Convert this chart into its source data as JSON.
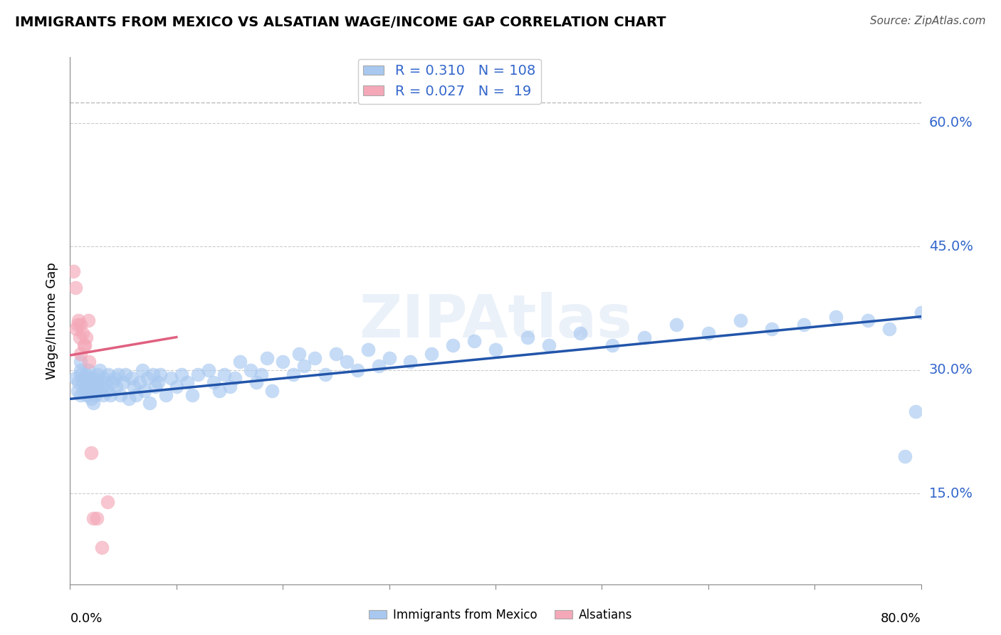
{
  "title": "IMMIGRANTS FROM MEXICO VS ALSATIAN WAGE/INCOME GAP CORRELATION CHART",
  "source": "Source: ZipAtlas.com",
  "ylabel": "Wage/Income Gap",
  "ylabel_ticks": [
    "15.0%",
    "30.0%",
    "45.0%",
    "60.0%"
  ],
  "ylabel_tick_vals": [
    0.15,
    0.3,
    0.45,
    0.6
  ],
  "xlim": [
    0.0,
    0.8
  ],
  "ylim": [
    0.04,
    0.68
  ],
  "blue_R": "0.310",
  "blue_N": "108",
  "pink_R": "0.027",
  "pink_N": "19",
  "blue_color": "#A8C8F0",
  "pink_color": "#F4A8B8",
  "blue_line_color": "#2255AA",
  "pink_line_color": "#E06080",
  "blue_line_x0": 0.0,
  "blue_line_x1": 0.8,
  "blue_line_y0": 0.265,
  "blue_line_y1": 0.365,
  "pink_line_x0": 0.0,
  "pink_line_x1": 0.1,
  "pink_line_y0": 0.318,
  "pink_line_y1": 0.34,
  "dashed_line_y": 0.625,
  "blue_scatter_x": [
    0.005,
    0.007,
    0.008,
    0.01,
    0.01,
    0.01,
    0.01,
    0.012,
    0.013,
    0.014,
    0.015,
    0.015,
    0.016,
    0.017,
    0.017,
    0.018,
    0.018,
    0.019,
    0.02,
    0.02,
    0.021,
    0.022,
    0.022,
    0.023,
    0.024,
    0.025,
    0.026,
    0.027,
    0.028,
    0.03,
    0.031,
    0.032,
    0.033,
    0.035,
    0.036,
    0.038,
    0.04,
    0.042,
    0.043,
    0.045,
    0.047,
    0.05,
    0.052,
    0.055,
    0.058,
    0.06,
    0.062,
    0.065,
    0.068,
    0.07,
    0.073,
    0.075,
    0.078,
    0.08,
    0.083,
    0.085,
    0.09,
    0.095,
    0.1,
    0.105,
    0.11,
    0.115,
    0.12,
    0.13,
    0.135,
    0.14,
    0.145,
    0.15,
    0.155,
    0.16,
    0.17,
    0.175,
    0.18,
    0.185,
    0.19,
    0.2,
    0.21,
    0.215,
    0.22,
    0.23,
    0.24,
    0.25,
    0.26,
    0.27,
    0.28,
    0.29,
    0.3,
    0.32,
    0.34,
    0.36,
    0.38,
    0.4,
    0.43,
    0.45,
    0.48,
    0.51,
    0.54,
    0.57,
    0.6,
    0.63,
    0.66,
    0.69,
    0.72,
    0.75,
    0.77,
    0.785,
    0.795,
    0.8
  ],
  "blue_scatter_y": [
    0.29,
    0.275,
    0.285,
    0.295,
    0.3,
    0.27,
    0.31,
    0.285,
    0.275,
    0.29,
    0.28,
    0.295,
    0.27,
    0.285,
    0.3,
    0.275,
    0.29,
    0.28,
    0.265,
    0.285,
    0.275,
    0.26,
    0.29,
    0.28,
    0.27,
    0.285,
    0.295,
    0.275,
    0.3,
    0.28,
    0.27,
    0.29,
    0.285,
    0.275,
    0.295,
    0.27,
    0.285,
    0.29,
    0.28,
    0.295,
    0.27,
    0.285,
    0.295,
    0.265,
    0.29,
    0.28,
    0.27,
    0.285,
    0.3,
    0.275,
    0.29,
    0.26,
    0.295,
    0.28,
    0.285,
    0.295,
    0.27,
    0.29,
    0.28,
    0.295,
    0.285,
    0.27,
    0.295,
    0.3,
    0.285,
    0.275,
    0.295,
    0.28,
    0.29,
    0.31,
    0.3,
    0.285,
    0.295,
    0.315,
    0.275,
    0.31,
    0.295,
    0.32,
    0.305,
    0.315,
    0.295,
    0.32,
    0.31,
    0.3,
    0.325,
    0.305,
    0.315,
    0.31,
    0.32,
    0.33,
    0.335,
    0.325,
    0.34,
    0.33,
    0.345,
    0.33,
    0.34,
    0.355,
    0.345,
    0.36,
    0.35,
    0.355,
    0.365,
    0.36,
    0.35,
    0.195,
    0.25,
    0.37
  ],
  "pink_scatter_x": [
    0.003,
    0.005,
    0.006,
    0.007,
    0.008,
    0.009,
    0.01,
    0.01,
    0.012,
    0.013,
    0.014,
    0.015,
    0.017,
    0.018,
    0.02,
    0.022,
    0.025,
    0.03,
    0.035
  ],
  "pink_scatter_y": [
    0.42,
    0.4,
    0.35,
    0.355,
    0.36,
    0.34,
    0.355,
    0.32,
    0.345,
    0.33,
    0.33,
    0.34,
    0.36,
    0.31,
    0.2,
    0.12,
    0.12,
    0.085,
    0.14
  ]
}
